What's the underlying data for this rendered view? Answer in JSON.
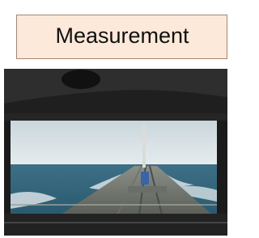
{
  "label": "Measurement"
}
